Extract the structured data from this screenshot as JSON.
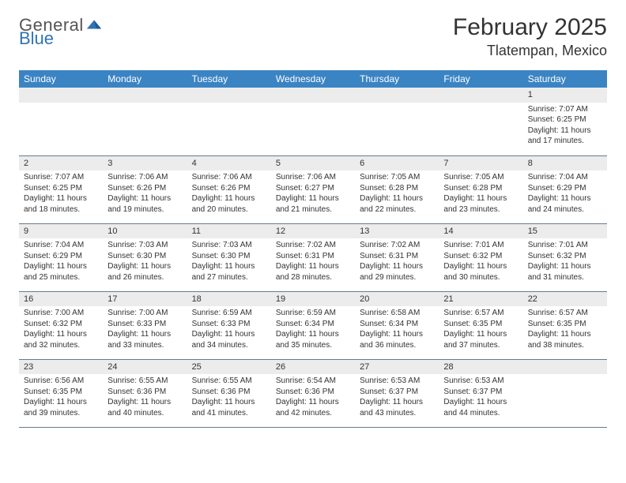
{
  "logo": {
    "line1": "General",
    "line2": "Blue"
  },
  "title": "February 2025",
  "location": "Tlatempan, Mexico",
  "colors": {
    "headerBg": "#3b84c4",
    "headerText": "#ffffff",
    "dayBar": "#ececec",
    "rule": "#6a7a8a",
    "brandBlue": "#2f73b7"
  },
  "weekdays": [
    "Sunday",
    "Monday",
    "Tuesday",
    "Wednesday",
    "Thursday",
    "Friday",
    "Saturday"
  ],
  "weeks": [
    [
      null,
      null,
      null,
      null,
      null,
      null,
      {
        "n": "1",
        "sr": "Sunrise: 7:07 AM",
        "ss": "Sunset: 6:25 PM",
        "d1": "Daylight: 11 hours",
        "d2": "and 17 minutes."
      }
    ],
    [
      {
        "n": "2",
        "sr": "Sunrise: 7:07 AM",
        "ss": "Sunset: 6:25 PM",
        "d1": "Daylight: 11 hours",
        "d2": "and 18 minutes."
      },
      {
        "n": "3",
        "sr": "Sunrise: 7:06 AM",
        "ss": "Sunset: 6:26 PM",
        "d1": "Daylight: 11 hours",
        "d2": "and 19 minutes."
      },
      {
        "n": "4",
        "sr": "Sunrise: 7:06 AM",
        "ss": "Sunset: 6:26 PM",
        "d1": "Daylight: 11 hours",
        "d2": "and 20 minutes."
      },
      {
        "n": "5",
        "sr": "Sunrise: 7:06 AM",
        "ss": "Sunset: 6:27 PM",
        "d1": "Daylight: 11 hours",
        "d2": "and 21 minutes."
      },
      {
        "n": "6",
        "sr": "Sunrise: 7:05 AM",
        "ss": "Sunset: 6:28 PM",
        "d1": "Daylight: 11 hours",
        "d2": "and 22 minutes."
      },
      {
        "n": "7",
        "sr": "Sunrise: 7:05 AM",
        "ss": "Sunset: 6:28 PM",
        "d1": "Daylight: 11 hours",
        "d2": "and 23 minutes."
      },
      {
        "n": "8",
        "sr": "Sunrise: 7:04 AM",
        "ss": "Sunset: 6:29 PM",
        "d1": "Daylight: 11 hours",
        "d2": "and 24 minutes."
      }
    ],
    [
      {
        "n": "9",
        "sr": "Sunrise: 7:04 AM",
        "ss": "Sunset: 6:29 PM",
        "d1": "Daylight: 11 hours",
        "d2": "and 25 minutes."
      },
      {
        "n": "10",
        "sr": "Sunrise: 7:03 AM",
        "ss": "Sunset: 6:30 PM",
        "d1": "Daylight: 11 hours",
        "d2": "and 26 minutes."
      },
      {
        "n": "11",
        "sr": "Sunrise: 7:03 AM",
        "ss": "Sunset: 6:30 PM",
        "d1": "Daylight: 11 hours",
        "d2": "and 27 minutes."
      },
      {
        "n": "12",
        "sr": "Sunrise: 7:02 AM",
        "ss": "Sunset: 6:31 PM",
        "d1": "Daylight: 11 hours",
        "d2": "and 28 minutes."
      },
      {
        "n": "13",
        "sr": "Sunrise: 7:02 AM",
        "ss": "Sunset: 6:31 PM",
        "d1": "Daylight: 11 hours",
        "d2": "and 29 minutes."
      },
      {
        "n": "14",
        "sr": "Sunrise: 7:01 AM",
        "ss": "Sunset: 6:32 PM",
        "d1": "Daylight: 11 hours",
        "d2": "and 30 minutes."
      },
      {
        "n": "15",
        "sr": "Sunrise: 7:01 AM",
        "ss": "Sunset: 6:32 PM",
        "d1": "Daylight: 11 hours",
        "d2": "and 31 minutes."
      }
    ],
    [
      {
        "n": "16",
        "sr": "Sunrise: 7:00 AM",
        "ss": "Sunset: 6:32 PM",
        "d1": "Daylight: 11 hours",
        "d2": "and 32 minutes."
      },
      {
        "n": "17",
        "sr": "Sunrise: 7:00 AM",
        "ss": "Sunset: 6:33 PM",
        "d1": "Daylight: 11 hours",
        "d2": "and 33 minutes."
      },
      {
        "n": "18",
        "sr": "Sunrise: 6:59 AM",
        "ss": "Sunset: 6:33 PM",
        "d1": "Daylight: 11 hours",
        "d2": "and 34 minutes."
      },
      {
        "n": "19",
        "sr": "Sunrise: 6:59 AM",
        "ss": "Sunset: 6:34 PM",
        "d1": "Daylight: 11 hours",
        "d2": "and 35 minutes."
      },
      {
        "n": "20",
        "sr": "Sunrise: 6:58 AM",
        "ss": "Sunset: 6:34 PM",
        "d1": "Daylight: 11 hours",
        "d2": "and 36 minutes."
      },
      {
        "n": "21",
        "sr": "Sunrise: 6:57 AM",
        "ss": "Sunset: 6:35 PM",
        "d1": "Daylight: 11 hours",
        "d2": "and 37 minutes."
      },
      {
        "n": "22",
        "sr": "Sunrise: 6:57 AM",
        "ss": "Sunset: 6:35 PM",
        "d1": "Daylight: 11 hours",
        "d2": "and 38 minutes."
      }
    ],
    [
      {
        "n": "23",
        "sr": "Sunrise: 6:56 AM",
        "ss": "Sunset: 6:35 PM",
        "d1": "Daylight: 11 hours",
        "d2": "and 39 minutes."
      },
      {
        "n": "24",
        "sr": "Sunrise: 6:55 AM",
        "ss": "Sunset: 6:36 PM",
        "d1": "Daylight: 11 hours",
        "d2": "and 40 minutes."
      },
      {
        "n": "25",
        "sr": "Sunrise: 6:55 AM",
        "ss": "Sunset: 6:36 PM",
        "d1": "Daylight: 11 hours",
        "d2": "and 41 minutes."
      },
      {
        "n": "26",
        "sr": "Sunrise: 6:54 AM",
        "ss": "Sunset: 6:36 PM",
        "d1": "Daylight: 11 hours",
        "d2": "and 42 minutes."
      },
      {
        "n": "27",
        "sr": "Sunrise: 6:53 AM",
        "ss": "Sunset: 6:37 PM",
        "d1": "Daylight: 11 hours",
        "d2": "and 43 minutes."
      },
      {
        "n": "28",
        "sr": "Sunrise: 6:53 AM",
        "ss": "Sunset: 6:37 PM",
        "d1": "Daylight: 11 hours",
        "d2": "and 44 minutes."
      },
      null
    ]
  ]
}
